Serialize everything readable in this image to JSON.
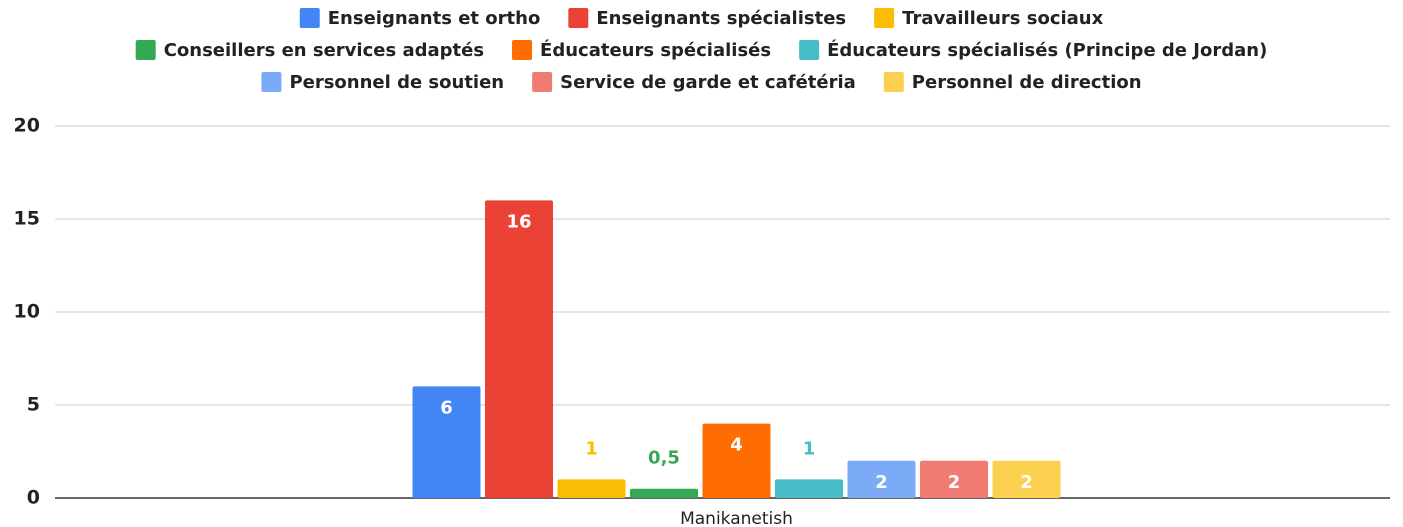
{
  "chart_data": {
    "type": "bar",
    "categories": [
      "Manikanetish"
    ],
    "series": [
      {
        "name": "Enseignants et ortho",
        "color": "#4285f4",
        "values": [
          6
        ]
      },
      {
        "name": "Enseignants spécialistes",
        "color": "#ea4335",
        "values": [
          16
        ]
      },
      {
        "name": "Travailleurs sociaux",
        "color": "#fbbc04",
        "values": [
          1
        ]
      },
      {
        "name": "Conseillers en services adaptés",
        "color": "#34a853",
        "values": [
          0.5
        ],
        "value_labels": [
          "0,5"
        ]
      },
      {
        "name": "Éducateurs spécialisés",
        "color": "#ff6d01",
        "values": [
          4
        ]
      },
      {
        "name": "Éducateurs spécialisés (Principe de Jordan)",
        "color": "#46bdc6",
        "values": [
          1
        ]
      },
      {
        "name": "Personnel de soutien",
        "color": "#7baaf7",
        "values": [
          2
        ]
      },
      {
        "name": "Service de garde et cafétéria",
        "color": "#f07b72",
        "values": [
          2
        ]
      },
      {
        "name": "Personnel de direction",
        "color": "#fcd04f",
        "values": [
          2
        ]
      }
    ],
    "ylim": [
      0,
      20
    ],
    "yticks": [
      0,
      5,
      10,
      15,
      20
    ],
    "grid": true,
    "legend": "top"
  }
}
